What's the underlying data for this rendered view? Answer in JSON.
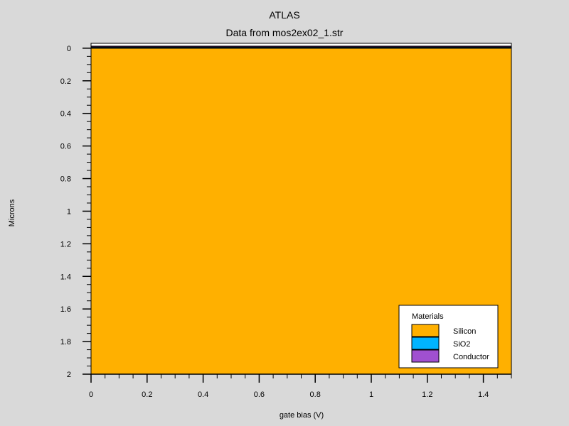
{
  "chart_data": {
    "type": "cross-section",
    "title": "ATLAS",
    "subtitle": "Data from mos2ex02_1.str",
    "xlabel": "gate bias (V)",
    "ylabel": "Microns",
    "xlim": [
      0,
      1.5
    ],
    "ylim": [
      -0.03,
      2
    ],
    "y_inverted": true,
    "x_ticks": [
      "0",
      "0.2",
      "0.4",
      "0.6",
      "0.8",
      "1",
      "1.2",
      "1.4"
    ],
    "y_ticks": [
      "0",
      "0.2",
      "0.4",
      "0.6",
      "0.8",
      "1",
      "1.2",
      "1.4",
      "1.6",
      "1.8",
      "2"
    ],
    "regions": [
      {
        "material": "Conductor",
        "x_range": [
          0,
          1.5
        ],
        "y_range": [
          -0.012,
          -0.006
        ]
      },
      {
        "material": "SiO2",
        "x_range": [
          0,
          1.5
        ],
        "y_range": [
          -0.006,
          0
        ]
      },
      {
        "material": "Silicon",
        "x_range": [
          0,
          1.5
        ],
        "y_range": [
          0,
          2
        ]
      }
    ],
    "legend": {
      "title": "Materials",
      "position": "bottom-right",
      "items": [
        {
          "label": "Silicon",
          "color": "#ffb000"
        },
        {
          "label": "SiO2",
          "color": "#00b4ff"
        },
        {
          "label": "Conductor",
          "color": "#a050d0"
        }
      ]
    }
  },
  "colors": {
    "background": "#d9d9d9",
    "plot_background": "#ffffff"
  }
}
